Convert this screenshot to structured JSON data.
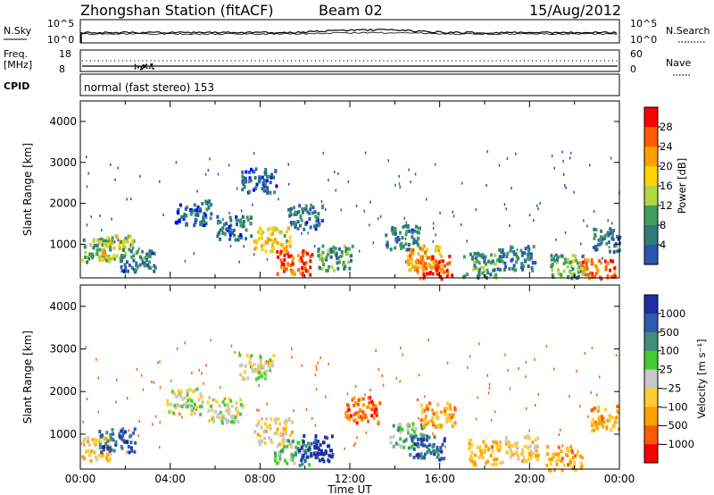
{
  "header": {
    "station": "Zhongshan Station (fitACF)",
    "beam": "Beam 02",
    "date": "15/Aug/2012"
  },
  "noise_panel": {
    "left_label": "N.Sky",
    "right_label": "N.Search",
    "left_ticks": [
      "10^5",
      "10^0"
    ],
    "right_ticks": [
      "10^5",
      "10^0"
    ]
  },
  "freq_panel": {
    "label_top": "Freq.",
    "label_unit": "[MHz]",
    "left_ticks": [
      "18",
      "8"
    ],
    "right_label": "Nave",
    "right_ticks": [
      "60",
      "0"
    ]
  },
  "cpid": {
    "label": "CPID",
    "value": "normal (fast stereo) 153"
  },
  "power_colorbar": {
    "title": "Power [dB]",
    "ticks": [
      "28",
      "24",
      "20",
      "16",
      "12",
      "8",
      "4"
    ],
    "colors": [
      "#ff0000",
      "#ff5a00",
      "#ff9f00",
      "#ffd200",
      "#b0d640",
      "#3f9e5a",
      "#2e7d7a",
      "#2a56b0",
      "#0000ff"
    ]
  },
  "velocity_colorbar": {
    "title": "Velocity [m s⁻¹]",
    "ticks": [
      "1000",
      "500",
      "100",
      "25",
      "−25",
      "−100",
      "−500",
      "−1000"
    ],
    "colors": [
      "#1a2ea8",
      "#2f5ab2",
      "#3f8f7a",
      "#44cc33",
      "#c8c8c8",
      "#ffcc33",
      "#ff9f00",
      "#ff5a00",
      "#ff0000"
    ]
  },
  "axes": {
    "ylabel": "Slant Range [km]",
    "y_ticks": [
      "4000",
      "3000",
      "2000",
      "1000"
    ],
    "x_ticks": [
      "00:00",
      "04:00",
      "08:00",
      "12:00",
      "16:00",
      "20:00",
      "00:00"
    ],
    "xlabel": "Time UT"
  },
  "chart_data": [
    {
      "type": "heatmap",
      "title": "Power [dB]",
      "xlabel": "Time UT",
      "ylabel": "Slant Range [km]",
      "xlim": [
        0,
        24
      ],
      "ylim": [
        180,
        4500
      ],
      "clim": [
        0,
        30
      ],
      "blobs": [
        {
          "t": 0.6,
          "r": 900,
          "v": 12
        },
        {
          "t": 1.6,
          "r": 950,
          "v": 16
        },
        {
          "t": 2.5,
          "r": 650,
          "v": 8
        },
        {
          "t": 5.0,
          "r": 1800,
          "v": 6
        },
        {
          "t": 6.8,
          "r": 1450,
          "v": 8
        },
        {
          "t": 7.9,
          "r": 2600,
          "v": 6
        },
        {
          "t": 8.5,
          "r": 1150,
          "v": 18
        },
        {
          "t": 9.5,
          "r": 580,
          "v": 26
        },
        {
          "t": 10.0,
          "r": 1700,
          "v": 7
        },
        {
          "t": 11.3,
          "r": 700,
          "v": 10
        },
        {
          "t": 14.3,
          "r": 1200,
          "v": 8
        },
        {
          "t": 15.3,
          "r": 700,
          "v": 20
        },
        {
          "t": 15.7,
          "r": 450,
          "v": 26
        },
        {
          "t": 17.8,
          "r": 520,
          "v": 10
        },
        {
          "t": 19.4,
          "r": 700,
          "v": 8
        },
        {
          "t": 21.7,
          "r": 480,
          "v": 12
        },
        {
          "t": 23.0,
          "r": 380,
          "v": 24
        },
        {
          "t": 23.6,
          "r": 1150,
          "v": 8
        }
      ]
    },
    {
      "type": "heatmap",
      "title": "Velocity [m s⁻¹]",
      "xlabel": "Time UT",
      "ylabel": "Slant Range [km]",
      "xlim": [
        0,
        24
      ],
      "ylim": [
        180,
        4500
      ],
      "clim": [
        -1000,
        1000
      ],
      "blobs": [
        {
          "t": 0.5,
          "r": 700,
          "v": -300
        },
        {
          "t": 1.6,
          "r": 900,
          "v": 600
        },
        {
          "t": 4.6,
          "r": 1800,
          "v": 0
        },
        {
          "t": 6.4,
          "r": 1600,
          "v": 0
        },
        {
          "t": 7.8,
          "r": 2600,
          "v": 10
        },
        {
          "t": 8.6,
          "r": 1100,
          "v": -150
        },
        {
          "t": 9.4,
          "r": 600,
          "v": 250
        },
        {
          "t": 10.5,
          "r": 700,
          "v": 900
        },
        {
          "t": 12.5,
          "r": 1600,
          "v": -600
        },
        {
          "t": 14.5,
          "r": 1000,
          "v": 200
        },
        {
          "t": 15.4,
          "r": 700,
          "v": 600
        },
        {
          "t": 15.9,
          "r": 1500,
          "v": -400
        },
        {
          "t": 18.0,
          "r": 600,
          "v": -350
        },
        {
          "t": 19.6,
          "r": 700,
          "v": -200
        },
        {
          "t": 21.5,
          "r": 450,
          "v": -400
        },
        {
          "t": 23.5,
          "r": 1400,
          "v": -400
        }
      ]
    }
  ]
}
